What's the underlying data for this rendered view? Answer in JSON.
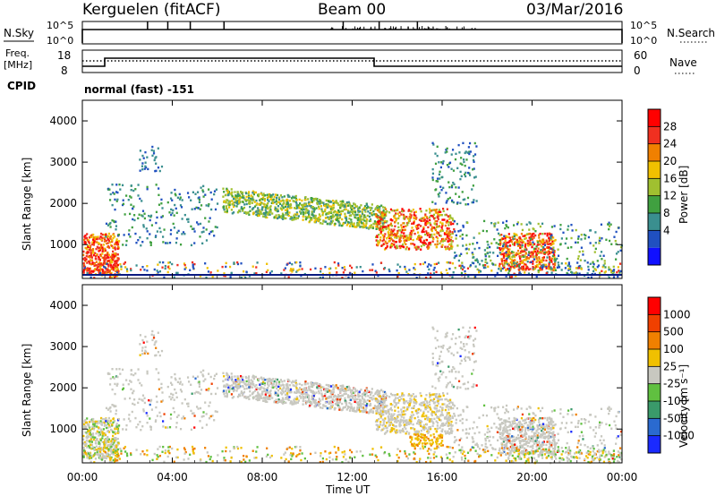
{
  "header": {
    "station": "Kerguelen (fitACF)",
    "beam": "Beam 00",
    "date": "03/Mar/2016"
  },
  "noise_panel": {
    "left_label": "N.Sky",
    "right_label": "N.Search",
    "left_ticks": [
      "10^5",
      "10^0"
    ],
    "right_ticks": [
      "10^5",
      "10^0"
    ]
  },
  "freq_panel": {
    "left_label_line1": "Freq.",
    "left_label_line2": "[MHz]",
    "right_label": "Nave",
    "left_ticks": [
      "18",
      "8"
    ],
    "right_ticks": [
      "60",
      "0"
    ],
    "cpid_label": "CPID",
    "mode_text": "normal (fast) -151"
  },
  "power_panel": {
    "ylabel": "Slant Range [km]",
    "yticks": [
      "4000",
      "3000",
      "2000",
      "1000"
    ],
    "colorbar_label": "Power [dB]",
    "colorbar_ticks": [
      "28",
      "24",
      "20",
      "16",
      "12",
      "8",
      "4"
    ],
    "colors": [
      "#1010ff",
      "#2050c0",
      "#3a8f8f",
      "#40a040",
      "#a0c030",
      "#f0c000",
      "#f08000",
      "#f03020",
      "#ff0000"
    ]
  },
  "velocity_panel": {
    "ylabel": "Slant Range [km]",
    "yticks": [
      "4000",
      "3000",
      "2000",
      "1000"
    ],
    "colorbar_label": "Velocity [m s⁻¹]",
    "colorbar_ticks": [
      "1000",
      "500",
      "100",
      "25",
      "-25",
      "-100",
      "-500",
      "-1000"
    ],
    "colors": [
      "#1a2aff",
      "#2a6ad0",
      "#3a9a6a",
      "#60c040",
      "#c8c8c0",
      "#f0c000",
      "#f08000",
      "#f04000",
      "#ff0000"
    ]
  },
  "time_axis": {
    "ticks": [
      "00:00",
      "04:00",
      "08:00",
      "12:00",
      "16:00",
      "20:00",
      "00:00"
    ],
    "label": "Time UT"
  },
  "chart_data": {
    "type": "heatmap",
    "x_range_hours": [
      0,
      24
    ],
    "y_range_km": [
      180,
      4500
    ],
    "power_regions": [
      {
        "t0": 0.0,
        "t1": 1.6,
        "r0": 300,
        "r1": 1300,
        "level": "red"
      },
      {
        "t0": 6.2,
        "t1": 13.5,
        "r0": 1500,
        "r1": 2400,
        "level": "green"
      },
      {
        "t0": 13.0,
        "t1": 16.5,
        "r0": 900,
        "r1": 1900,
        "level": "red"
      },
      {
        "t0": 18.5,
        "t1": 21.0,
        "r0": 400,
        "r1": 1300,
        "level": "red"
      }
    ],
    "velocity_regions": [
      {
        "t0": 2.0,
        "t1": 17.5,
        "r0": 1400,
        "r1": 2400,
        "level": "grey"
      },
      {
        "t0": 14.5,
        "t1": 16.0,
        "r0": 600,
        "r1": 900,
        "level": "orange"
      }
    ]
  }
}
